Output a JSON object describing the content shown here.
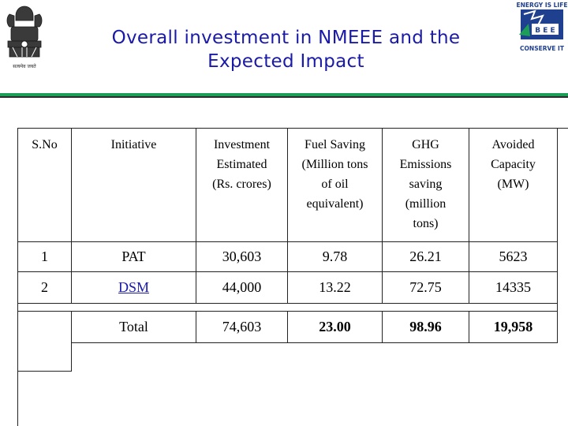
{
  "slide": {
    "title_line1": "Overall investment in NMEEE and the",
    "title_line2": "Expected Impact"
  },
  "logos": {
    "left": {
      "icon": "india-state-emblem-icon",
      "caption": "सत्यमेव जयते"
    },
    "right": {
      "icon": "bee-energy-logo-icon",
      "top_text": "ENERGY IS LIFE",
      "middle_text": "B E E",
      "bottom_text": "CONSERVE IT"
    }
  },
  "colors": {
    "title": "#1a1aa8",
    "accent_green": "#1d9e57",
    "logo_blue": "#1f3f8f"
  },
  "table": {
    "headers": [
      [
        "S.No"
      ],
      [
        "Initiative"
      ],
      [
        "Investment",
        "Estimated",
        "(Rs. crores)"
      ],
      [
        "Fuel Saving",
        "(Million tons",
        "of oil",
        "equivalent)"
      ],
      [
        "GHG",
        "Emissions",
        "saving",
        "(million",
        "tons)"
      ],
      [
        "Avoided",
        "Capacity",
        "(MW)"
      ]
    ],
    "rows": [
      {
        "sno": "1",
        "initiative": "PAT",
        "investment": "30,603",
        "fuel": "9.78",
        "ghg": "26.21",
        "capacity": "5623"
      },
      {
        "sno": "2",
        "initiative": "DSM",
        "investment": "44,000",
        "fuel": "13.22",
        "ghg": "72.75",
        "capacity": "14335"
      },
      {
        "sno": "",
        "initiative": "Total",
        "investment": "74,603",
        "fuel": "23.00",
        "ghg": "98.96",
        "capacity": "19,958"
      }
    ]
  }
}
